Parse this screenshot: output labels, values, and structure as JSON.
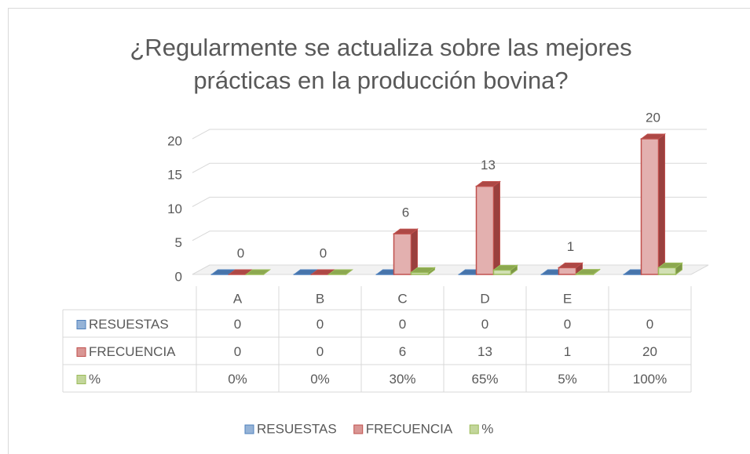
{
  "chart_data": {
    "type": "bar3d",
    "title": "¿Regularmente se actualiza sobre las mejores prácticas en la producción bovina?",
    "categories": [
      "A",
      "B",
      "C",
      "D",
      "E",
      null
    ],
    "series": [
      {
        "name": "RESUESTAS",
        "color": "#4f81bd",
        "values": [
          0,
          0,
          0,
          0,
          0,
          0
        ]
      },
      {
        "name": "FRECUENCIA",
        "color": "#c0504d",
        "values": [
          0,
          0,
          6,
          13,
          1,
          20
        ]
      },
      {
        "name": "%",
        "color": "#9bbb59",
        "values": [
          0,
          0,
          0.3,
          0.65,
          0.05,
          1
        ],
        "value_labels": [
          "0%",
          "0%",
          "30%",
          "65%",
          "5%",
          "100%"
        ]
      }
    ],
    "ylim": [
      0,
      20
    ],
    "yticks": [
      0,
      5,
      10,
      15,
      20
    ],
    "grid": true,
    "data_labels_series": 1,
    "data_table": true,
    "legend": "bottom"
  }
}
